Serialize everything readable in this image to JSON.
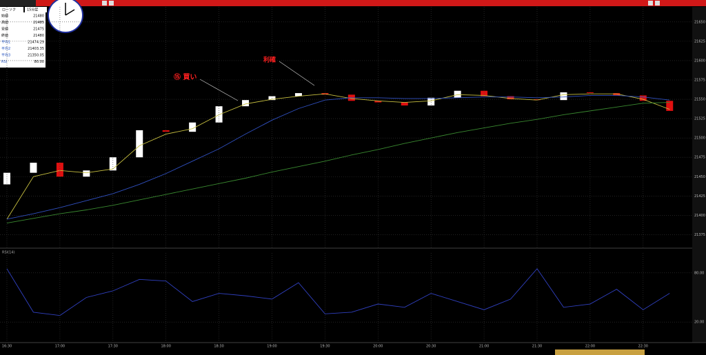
{
  "toolbar": {
    "chart_kind": "ローソク",
    "interval": "15分足"
  },
  "info_panel": {
    "rows": [
      [
        "始値",
        "21480"
      ],
      [
        "高値",
        "21485"
      ],
      [
        "安値",
        "21475"
      ],
      [
        "終値",
        "21480"
      ],
      [
        "平均1",
        "21474.29"
      ],
      [
        "平均2",
        "21403.35"
      ],
      [
        "平均3",
        "21350.05"
      ],
      [
        "RSI",
        "80.00"
      ]
    ]
  },
  "annotations": {
    "buy": "⑮ 買い",
    "take_profit": "利確"
  },
  "chart_data": [
    {
      "type": "candlestick",
      "categories": [
        "16:30",
        null,
        "17:00",
        null,
        "17:30",
        null,
        "18:00",
        null,
        "18:30",
        null,
        "19:00",
        null,
        "19:30",
        null,
        "20:00",
        null,
        "20:30",
        null,
        "21:00",
        null,
        "21:30",
        null,
        "22:00",
        null,
        "22:30",
        null
      ],
      "open": [
        21440,
        21455,
        21468,
        21450,
        21458,
        21475,
        21510,
        21508,
        21520,
        21541,
        21549,
        21554,
        21558,
        21556,
        21548,
        21546,
        21542,
        21552,
        21561,
        21554,
        21550,
        21549,
        21559,
        21558,
        21555,
        21548
      ],
      "close": [
        21455,
        21468,
        21450,
        21458,
        21475,
        21510,
        21508,
        21520,
        21541,
        21549,
        21554,
        21558,
        21556,
        21548,
        21546,
        21542,
        21552,
        21561,
        21554,
        21550,
        21549,
        21559,
        21558,
        21555,
        21548,
        21535
      ],
      "up_color": "#ffffff",
      "down_color": "#e01010",
      "lines": [
        {
          "color": "#c8c040",
          "values": [
            21395,
            21450,
            21458,
            21455,
            21460,
            21490,
            21505,
            21512,
            21530,
            21544,
            21550,
            21554,
            21557,
            21551,
            21548,
            21546,
            21548,
            21556,
            21555,
            21551,
            21549,
            21556,
            21557,
            21557,
            21550,
            21537
          ]
        },
        {
          "color": "#3050c0",
          "values": [
            21395,
            21402,
            21410,
            21419,
            21428,
            21440,
            21454,
            21470,
            21486,
            21505,
            21523,
            21538,
            21549,
            21552,
            21552,
            21551,
            21551,
            21552,
            21553,
            21553,
            21552,
            21553,
            21555,
            21555,
            21553,
            21549
          ]
        },
        {
          "color": "#3a8a30",
          "values": [
            21390,
            21396,
            21402,
            21407,
            21413,
            21420,
            21427,
            21434,
            21441,
            21448,
            21456,
            21463,
            21470,
            21478,
            21485,
            21493,
            21500,
            21507,
            21513,
            21519,
            21524,
            21530,
            21535,
            21540,
            21545,
            21546
          ]
        }
      ],
      "ylim": [
        21362,
        21665
      ],
      "yticks": [
        21375,
        21400,
        21425,
        21450,
        21475,
        21500,
        21525,
        21550,
        21575,
        21600,
        21625,
        21650
      ],
      "grid": true
    },
    {
      "type": "line",
      "title": "RSI(14)",
      "color": "#3040c0",
      "values": [
        85,
        32,
        28,
        50,
        58,
        72,
        70,
        45,
        55,
        52,
        48,
        68,
        30,
        32,
        42,
        38,
        55,
        45,
        35,
        48,
        85,
        38,
        42,
        60,
        35,
        55
      ],
      "ylim": [
        0,
        100
      ],
      "yticks": [
        {
          "value": 20,
          "label": "20.00"
        },
        {
          "value": 80,
          "label": "80.00"
        }
      ],
      "grid": true
    }
  ]
}
